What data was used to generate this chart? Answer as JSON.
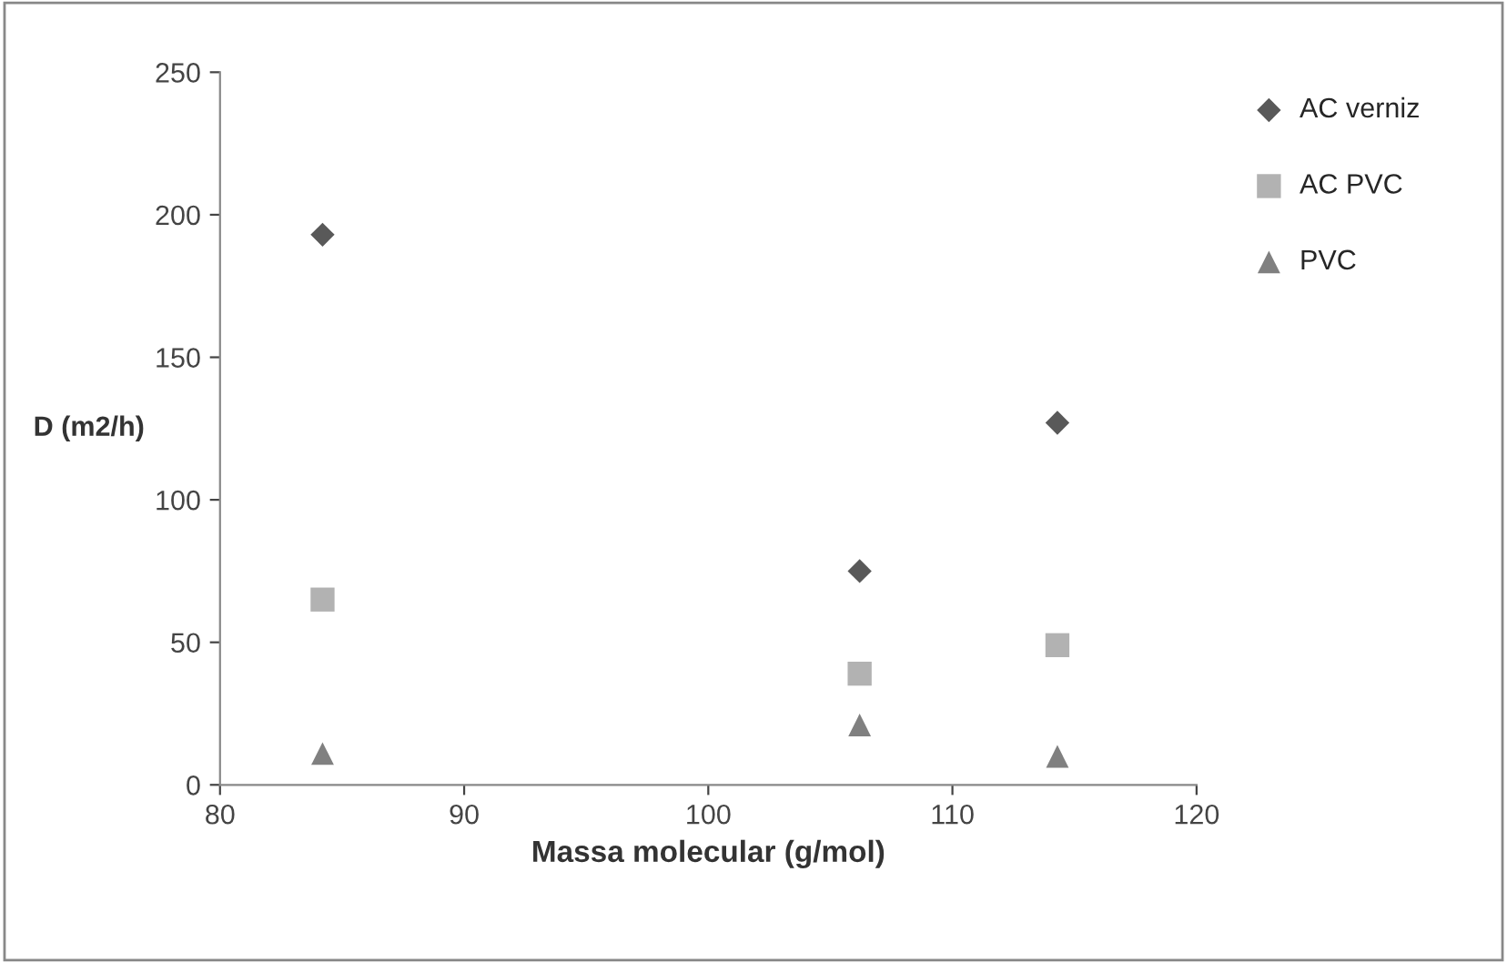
{
  "chart_data": {
    "type": "scatter",
    "xlabel": "Massa molecular (g/mol)",
    "ylabel": "D (m2/h)",
    "x": [
      84.2,
      106.2,
      114.3
    ],
    "series": [
      {
        "name": "AC verniz",
        "color": "#595959",
        "marker": "diamond",
        "values": [
          193,
          75,
          127
        ]
      },
      {
        "name": "AC PVC",
        "color": "#b2b2b2",
        "marker": "square",
        "values": [
          65,
          39,
          49
        ]
      },
      {
        "name": "PVC",
        "color": "#808080",
        "marker": "triangle",
        "values": [
          11,
          21,
          10
        ]
      }
    ],
    "xlim": [
      80,
      120
    ],
    "xticks": [
      80,
      90,
      100,
      110,
      120
    ],
    "ylim": [
      0,
      250
    ],
    "yticks": [
      0,
      50,
      100,
      150,
      200,
      250
    ],
    "grid": false,
    "legend": "top right"
  }
}
